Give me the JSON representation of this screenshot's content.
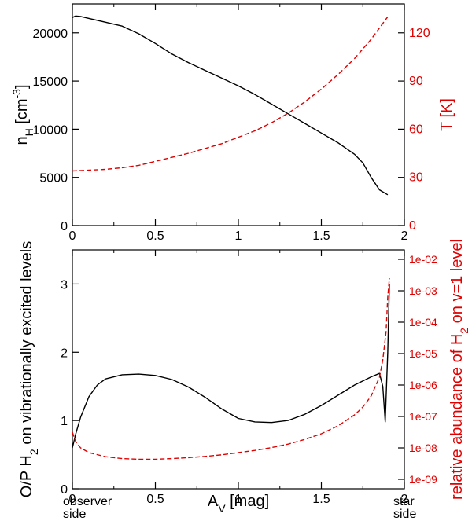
{
  "chart_data": [
    {
      "type": "line",
      "panel": "top",
      "xlim": [
        0,
        2
      ],
      "x_ticks": [
        0,
        0.5,
        1,
        1.5,
        2
      ],
      "x_tick_labels": [
        "0",
        "0.5",
        "1",
        "1.5",
        "2"
      ],
      "ylabel_left": {
        "main": "n",
        "sub": "H",
        "bracket_open": " [cm",
        "sup": "-3",
        "bracket_close": "]"
      },
      "ylim_left": [
        0,
        23000
      ],
      "y_ticks_left": [
        0,
        5000,
        10000,
        15000,
        20000
      ],
      "y_tick_labels_left": [
        "0",
        "5000",
        "10000",
        "15000",
        "20000"
      ],
      "ylabel_right": "T [K]",
      "ylim_right": [
        0,
        138
      ],
      "y_ticks_right": [
        0,
        30,
        60,
        90,
        120
      ],
      "y_tick_labels_right": [
        "0",
        "30",
        "60",
        "90",
        "120"
      ],
      "series": [
        {
          "name": "n_H",
          "axis": "left",
          "color": "#000000",
          "style": "solid",
          "x": [
            0,
            0.02,
            0.05,
            0.1,
            0.2,
            0.3,
            0.4,
            0.5,
            0.6,
            0.7,
            0.8,
            0.9,
            1.0,
            1.1,
            1.2,
            1.3,
            1.4,
            1.5,
            1.6,
            1.7,
            1.75,
            1.8,
            1.85,
            1.9
          ],
          "y": [
            21600,
            21750,
            21700,
            21500,
            21100,
            20700,
            19900,
            18900,
            17800,
            16900,
            16100,
            15300,
            14500,
            13600,
            12600,
            11600,
            10600,
            9600,
            8600,
            7400,
            6500,
            5000,
            3700,
            3200
          ]
        },
        {
          "name": "T",
          "axis": "right",
          "color": "#e00000",
          "style": "dashed",
          "x": [
            0,
            0.1,
            0.2,
            0.3,
            0.4,
            0.5,
            0.6,
            0.7,
            0.8,
            0.9,
            1.0,
            1.1,
            1.2,
            1.3,
            1.4,
            1.5,
            1.6,
            1.7,
            1.8,
            1.9
          ],
          "y": [
            34,
            34.5,
            35,
            36,
            37.5,
            40,
            42.5,
            45,
            48,
            51,
            55,
            59,
            64,
            70,
            77,
            85,
            94,
            104,
            116,
            130
          ]
        }
      ]
    },
    {
      "type": "line",
      "panel": "bottom",
      "xlim": [
        0,
        2
      ],
      "x_ticks": [
        0,
        0.5,
        1,
        1.5,
        2
      ],
      "x_tick_labels": [
        "0",
        "0.5",
        "1",
        "1.5",
        "2"
      ],
      "xlabel": {
        "main": "A",
        "sub": "V",
        "rest": " [mag]"
      },
      "x_side_labels": {
        "left_line1": "observer",
        "left_line2": "side",
        "right_line1": "star",
        "right_line2": "side"
      },
      "ylabel_left": {
        "pre": "O/P H",
        "sub": "2",
        "post": " on vibrationally excited levels"
      },
      "ylim_left": [
        0,
        3.5
      ],
      "y_ticks_left": [
        0,
        1,
        2,
        3
      ],
      "y_tick_labels_left": [
        "0",
        "1",
        "2",
        "3"
      ],
      "ylabel_right": {
        "pre": "relative abundance of H",
        "sub": "2",
        "post": " on v=1 level"
      },
      "ylim_right_log10": [
        -9.3,
        -1.7
      ],
      "y_ticks_right_log10": [
        -9,
        -8,
        -7,
        -6,
        -5,
        -4,
        -3,
        -2
      ],
      "y_tick_labels_right": [
        "1e-09",
        "1e-08",
        "1e-07",
        "1e-06",
        "1e-05",
        "1e-04",
        "1e-03",
        "1e-02"
      ],
      "series": [
        {
          "name": "O/P H2 ratio",
          "axis": "left",
          "color": "#000000",
          "style": "solid",
          "x": [
            0,
            0.02,
            0.05,
            0.1,
            0.15,
            0.2,
            0.3,
            0.4,
            0.5,
            0.6,
            0.7,
            0.8,
            0.9,
            1.0,
            1.1,
            1.2,
            1.3,
            1.4,
            1.5,
            1.6,
            1.7,
            1.8,
            1.85,
            1.87,
            1.885,
            1.9,
            1.91
          ],
          "y": [
            0.6,
            0.8,
            1.05,
            1.35,
            1.52,
            1.61,
            1.67,
            1.68,
            1.66,
            1.6,
            1.49,
            1.34,
            1.17,
            1.03,
            0.98,
            0.97,
            1.0,
            1.09,
            1.22,
            1.37,
            1.52,
            1.64,
            1.69,
            1.5,
            0.98,
            2.0,
            3.0
          ]
        },
        {
          "name": "H2 v=1 relative abundance",
          "axis": "right",
          "color": "#e00000",
          "style": "dashed",
          "x": [
            0,
            0.02,
            0.05,
            0.1,
            0.2,
            0.3,
            0.4,
            0.5,
            0.6,
            0.7,
            0.8,
            0.9,
            1.0,
            1.1,
            1.2,
            1.3,
            1.4,
            1.5,
            1.6,
            1.7,
            1.75,
            1.8,
            1.85,
            1.87,
            1.89,
            1.9,
            1.91
          ],
          "y_log10": [
            -7.5,
            -7.8,
            -8.0,
            -8.15,
            -8.28,
            -8.34,
            -8.36,
            -8.36,
            -8.34,
            -8.31,
            -8.27,
            -8.22,
            -8.15,
            -8.08,
            -7.99,
            -7.88,
            -7.73,
            -7.55,
            -7.3,
            -6.95,
            -6.7,
            -6.35,
            -5.75,
            -5.2,
            -4.3,
            -3.2,
            -2.6
          ]
        }
      ]
    }
  ]
}
